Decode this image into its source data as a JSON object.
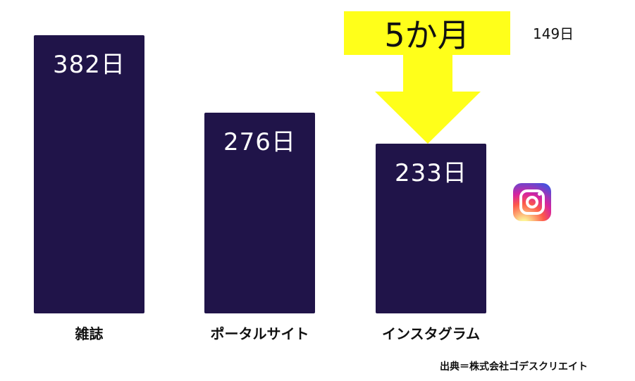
{
  "chart_data": {
    "type": "bar",
    "categories": [
      "雑誌",
      "ポータルサイト",
      "インスタグラム"
    ],
    "values": [
      382,
      276,
      233
    ],
    "value_labels": [
      "382日",
      "276日",
      "233日"
    ],
    "ylim": [
      0,
      400
    ],
    "grid": false,
    "bar_color": "#201449",
    "annotation": "5か月",
    "annotation_color": "#ffff1a",
    "extra_label": "149日",
    "icon": "instagram-icon"
  },
  "source": "出典＝株式会社ゴデスクリエイト"
}
